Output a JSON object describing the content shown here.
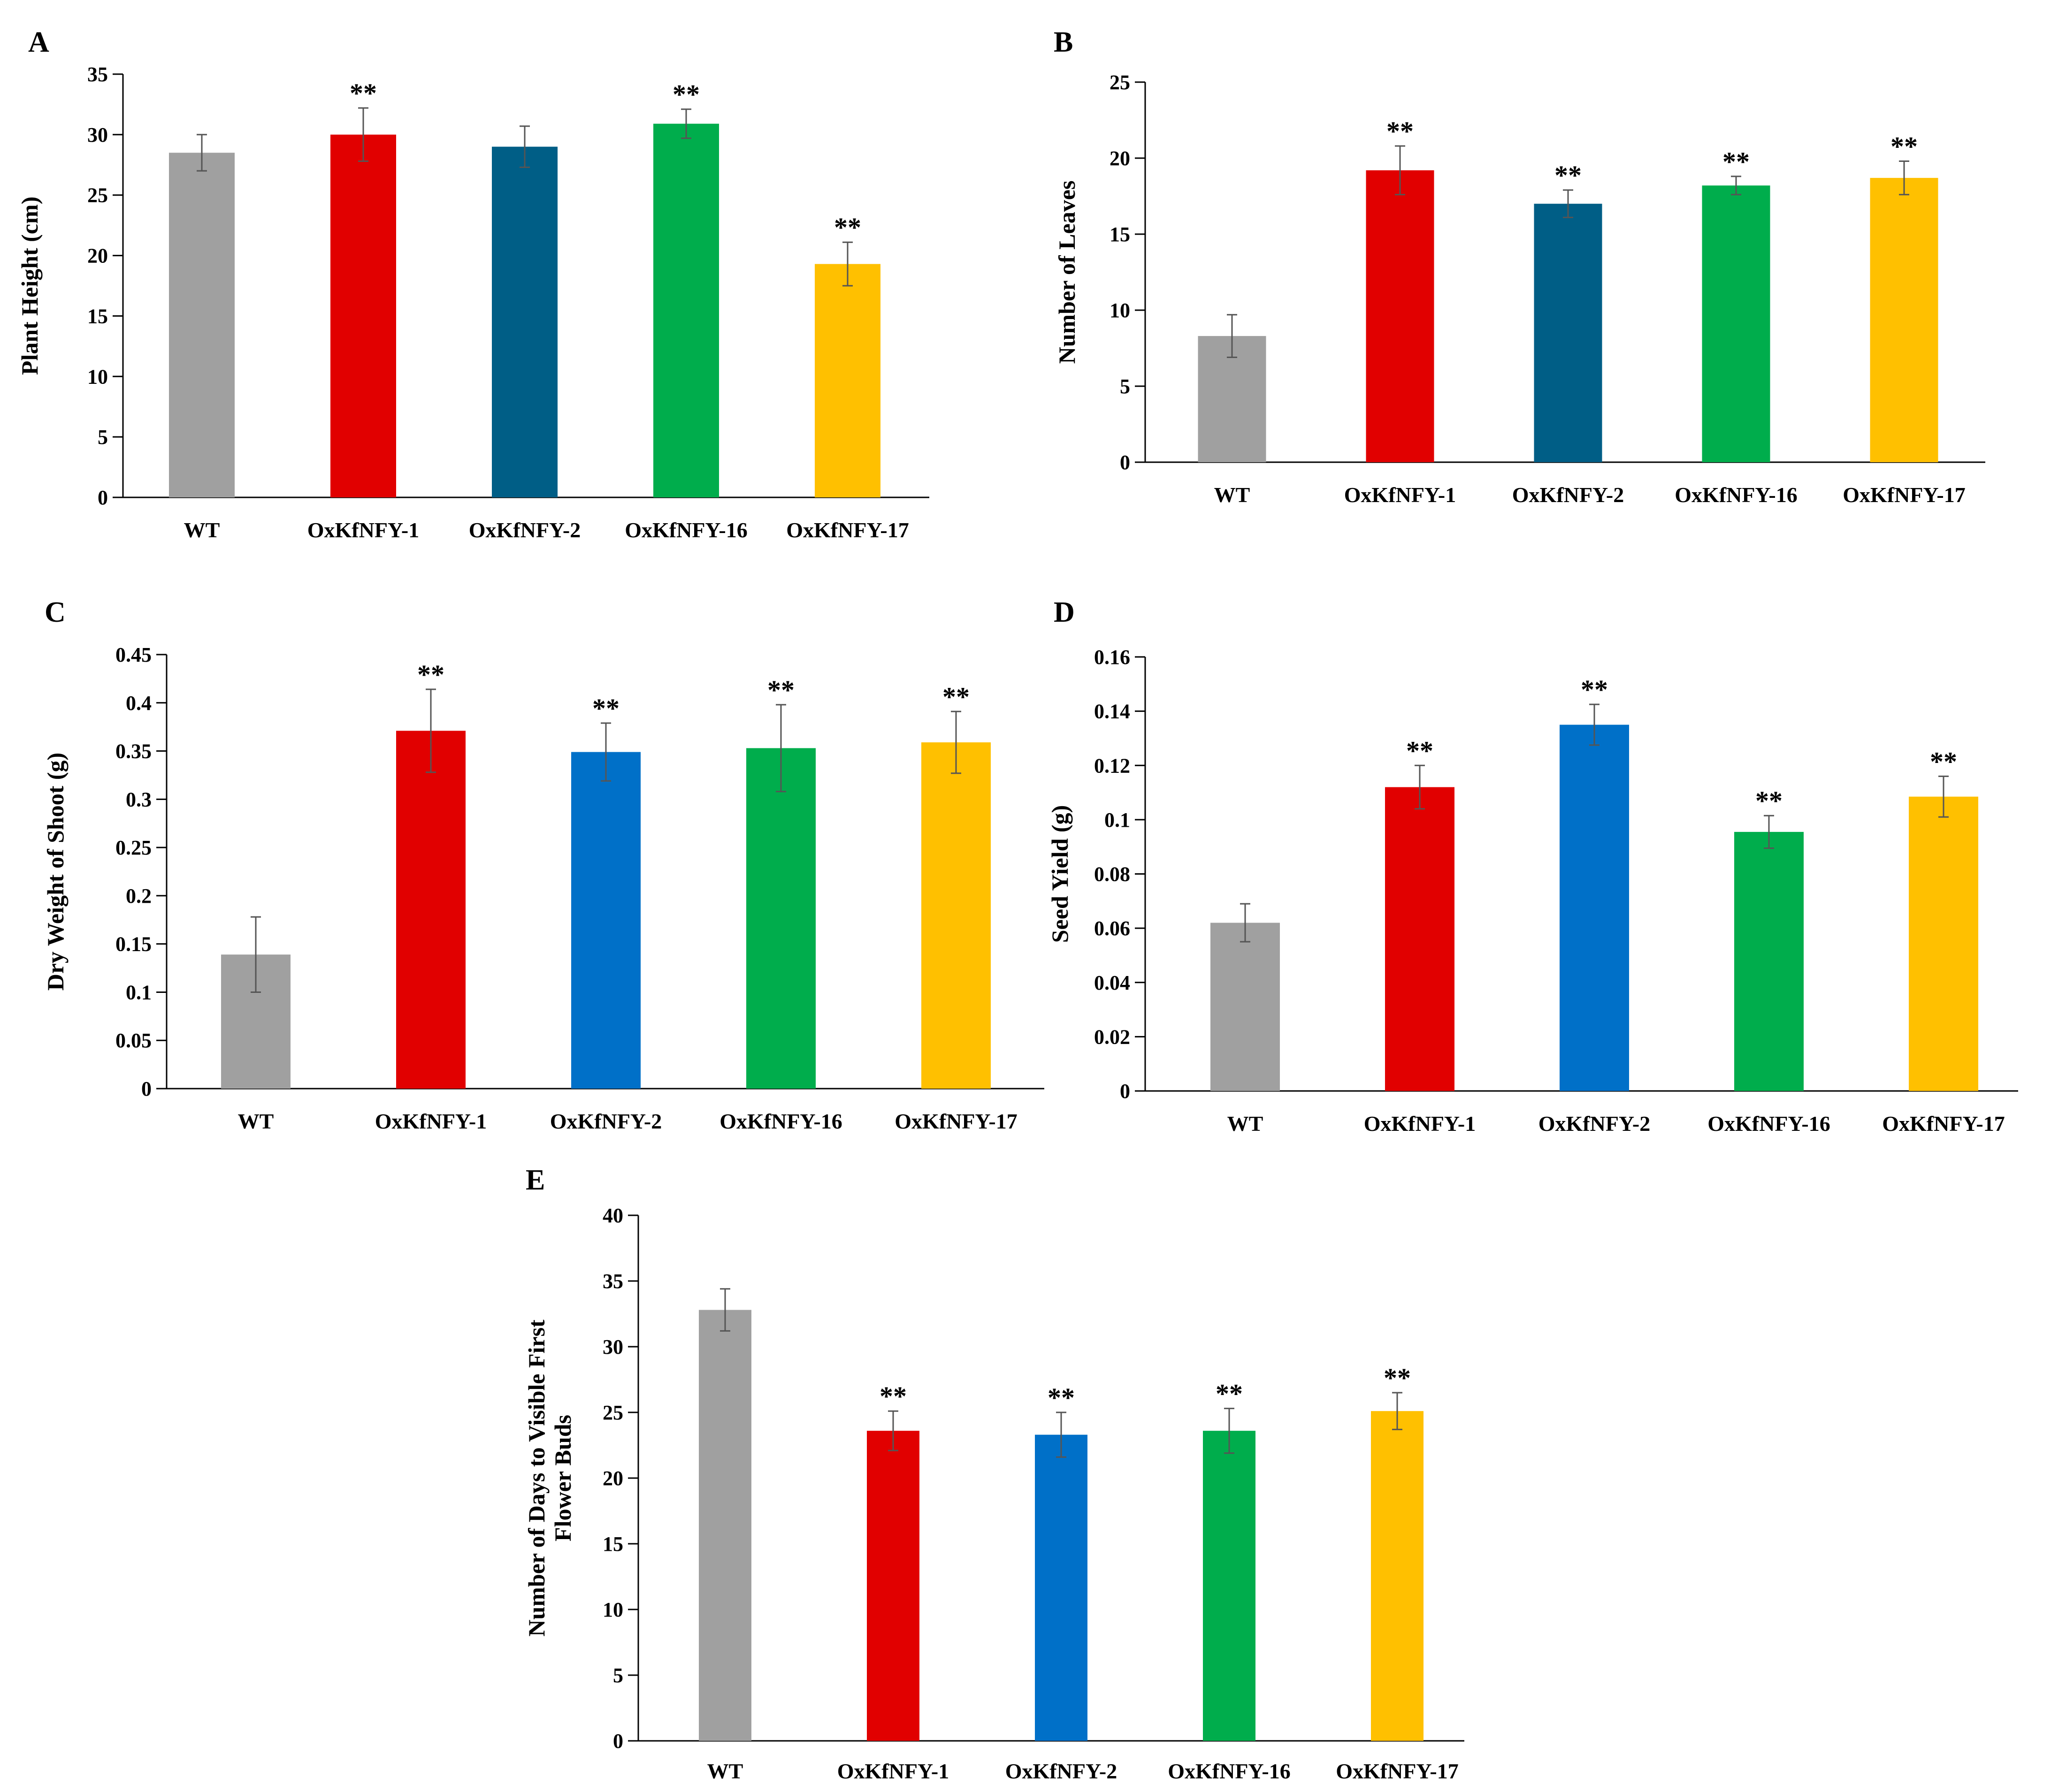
{
  "figure": {
    "title": "",
    "categories": [
      "WT",
      "OxKfNFY-1",
      "OxKfNFY-2",
      "OxKfNFY-16",
      "OxKfNFY-17"
    ]
  },
  "chart_data": [
    {
      "panel": "A",
      "type": "bar",
      "categories": [
        "WT",
        "OxKfNFY-1",
        "OxKfNFY-2",
        "OxKfNFY-16",
        "OxKfNFY-17"
      ],
      "values": [
        28.5,
        30.0,
        29.0,
        30.9,
        19.3
      ],
      "errors": [
        1.5,
        2.2,
        1.7,
        1.2,
        1.8
      ],
      "significance": [
        "",
        "**",
        "",
        "**",
        "**"
      ],
      "colors": [
        "#a0a0a0",
        "#e10000",
        "#005e86",
        "#00ad4c",
        "#ffc000"
      ],
      "ylabel": "Plant Height (cm)",
      "ylim": [
        0,
        35
      ],
      "yticks": [
        "0",
        "5",
        "10",
        "15",
        "20",
        "25",
        "30",
        "35"
      ]
    },
    {
      "panel": "B",
      "type": "bar",
      "categories": [
        "WT",
        "OxKfNFY-1",
        "OxKfNFY-2",
        "OxKfNFY-16",
        "OxKfNFY-17"
      ],
      "values": [
        8.3,
        19.2,
        17.0,
        18.2,
        18.7
      ],
      "errors": [
        1.4,
        1.6,
        0.9,
        0.6,
        1.1
      ],
      "significance": [
        "",
        "**",
        "**",
        "**",
        "**"
      ],
      "colors": [
        "#a0a0a0",
        "#e10000",
        "#005e86",
        "#00ad4c",
        "#ffc000"
      ],
      "ylabel": "Number of Leaves",
      "ylim": [
        0,
        25
      ],
      "yticks": [
        "0",
        "5",
        "10",
        "15",
        "20",
        "25"
      ]
    },
    {
      "panel": "C",
      "type": "bar",
      "categories": [
        "WT",
        "OxKfNFY-1",
        "OxKfNFY-2",
        "OxKfNFY-16",
        "OxKfNFY-17"
      ],
      "values": [
        0.139,
        0.371,
        0.349,
        0.353,
        0.359
      ],
      "errors": [
        0.039,
        0.043,
        0.03,
        0.045,
        0.032
      ],
      "significance": [
        "",
        "**",
        "**",
        "**",
        "**"
      ],
      "colors": [
        "#a0a0a0",
        "#e10000",
        "#0070c8",
        "#00ad4c",
        "#ffc000"
      ],
      "ylabel": "Dry Weight of Shoot (g)",
      "ylim": [
        0,
        0.45
      ],
      "yticks": [
        "0",
        "0.05",
        "0.1",
        "0.15",
        "0.2",
        "0.25",
        "0.3",
        "0.35",
        "0.4",
        "0.45"
      ]
    },
    {
      "panel": "D",
      "type": "bar",
      "categories": [
        "WT",
        "OxKfNFY-1",
        "OxKfNFY-2",
        "OxKfNFY-16",
        "OxKfNFY-17"
      ],
      "values": [
        0.062,
        0.112,
        0.135,
        0.0955,
        0.1085
      ],
      "errors": [
        0.007,
        0.008,
        0.0075,
        0.006,
        0.0075
      ],
      "significance": [
        "",
        "**",
        "**",
        "**",
        "**"
      ],
      "colors": [
        "#a0a0a0",
        "#e10000",
        "#0070c8",
        "#00ad4c",
        "#ffc000"
      ],
      "ylabel": "Seed Yield  (g)",
      "ylim": [
        0,
        0.16
      ],
      "yticks": [
        "0",
        "0.02",
        "0.04",
        "0.06",
        "0.08",
        "0.1",
        "0.12",
        "0.14",
        "0.16"
      ]
    },
    {
      "panel": "E",
      "type": "bar",
      "categories": [
        "WT",
        "OxKfNFY-1",
        "OxKfNFY-2",
        "OxKfNFY-16",
        "OxKfNFY-17"
      ],
      "values": [
        32.8,
        23.6,
        23.3,
        23.6,
        25.1
      ],
      "errors": [
        1.6,
        1.5,
        1.7,
        1.7,
        1.4
      ],
      "significance": [
        "",
        "**",
        "**",
        "**",
        "**"
      ],
      "colors": [
        "#a0a0a0",
        "#e10000",
        "#0070c8",
        "#00ad4c",
        "#ffc000"
      ],
      "ylabel": [
        "Number of Days to Visible First",
        "Flower Buds"
      ],
      "ylim": [
        0,
        40
      ],
      "yticks": [
        "0",
        "5",
        "10",
        "15",
        "20",
        "25",
        "30",
        "35",
        "40"
      ]
    }
  ]
}
